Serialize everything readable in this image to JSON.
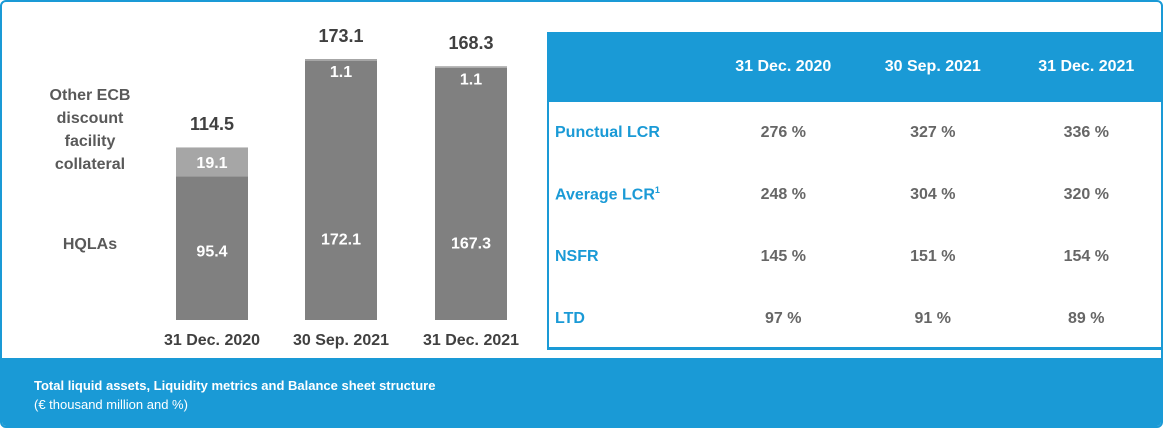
{
  "chart_data": {
    "type": "bar",
    "categories": [
      "31 Dec. 2020",
      "30 Sep. 2021",
      "31 Dec. 2021"
    ],
    "series": [
      {
        "name": "HQLAs",
        "color": "#808080",
        "values": [
          95.4,
          172.1,
          167.3
        ]
      },
      {
        "name": "Other ECB discount facility collateral",
        "color": "#a6a6a6",
        "values": [
          19.1,
          1.1,
          1.1
        ]
      }
    ],
    "totals": [
      114.5,
      173.1,
      168.3
    ]
  },
  "table": {
    "header": [
      "31 Dec. 2020",
      "30 Sep. 2021",
      "31 Dec. 2021"
    ],
    "rows": [
      {
        "label": "Punctual LCR",
        "cells": [
          "276 %",
          "327 %",
          "336 %"
        ]
      },
      {
        "label": "Average LCR",
        "sup": "1",
        "cells": [
          "248 %",
          "304 %",
          "320 %"
        ]
      },
      {
        "label": "NSFR",
        "cells": [
          "145 %",
          "151 %",
          "154 %"
        ]
      },
      {
        "label": "LTD",
        "cells": [
          "97 %",
          "91 %",
          "89 %"
        ]
      }
    ]
  },
  "footer": {
    "title": "Total liquid assets, Liquidity metrics and Balance sheet structure",
    "subtitle": "(€ thousand million and %)"
  }
}
